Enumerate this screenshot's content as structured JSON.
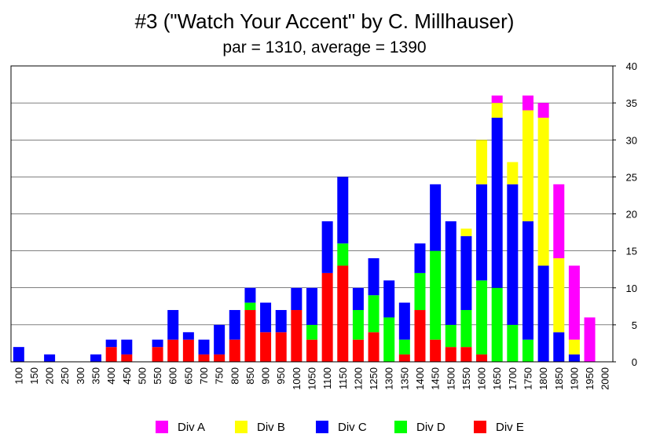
{
  "chart_data": {
    "type": "bar",
    "stacked": true,
    "title": "#3 (\"Watch Your Accent\" by C. Millhauser)",
    "subtitle": "par = 1310, average = 1390",
    "categories": [
      "100",
      "150",
      "200",
      "250",
      "300",
      "350",
      "400",
      "450",
      "500",
      "550",
      "600",
      "650",
      "700",
      "750",
      "800",
      "850",
      "900",
      "950",
      "1000",
      "1050",
      "1100",
      "1150",
      "1200",
      "1250",
      "1300",
      "1350",
      "1400",
      "1450",
      "1500",
      "1550",
      "1600",
      "1650",
      "1700",
      "1750",
      "1800",
      "1850",
      "1900",
      "1950",
      "2000"
    ],
    "series": [
      {
        "name": "Div E",
        "color": "#ff0000",
        "values": [
          0,
          0,
          0,
          0,
          0,
          0,
          2,
          1,
          0,
          2,
          3,
          3,
          1,
          1,
          3,
          7,
          4,
          4,
          7,
          3,
          12,
          13,
          3,
          4,
          0,
          1,
          7,
          3,
          2,
          2,
          1,
          0,
          0,
          0,
          0,
          0,
          0,
          0,
          0
        ]
      },
      {
        "name": "Div D",
        "color": "#00ff00",
        "values": [
          0,
          0,
          0,
          0,
          0,
          0,
          0,
          0,
          0,
          0,
          0,
          0,
          0,
          0,
          0,
          1,
          0,
          0,
          0,
          2,
          0,
          3,
          4,
          5,
          6,
          2,
          5,
          12,
          3,
          5,
          10,
          10,
          5,
          3,
          0,
          0,
          0,
          0,
          0
        ]
      },
      {
        "name": "Div C",
        "color": "#0000ff",
        "values": [
          2,
          0,
          1,
          0,
          0,
          1,
          1,
          2,
          0,
          1,
          4,
          1,
          2,
          4,
          4,
          2,
          4,
          3,
          3,
          5,
          7,
          9,
          3,
          5,
          5,
          5,
          4,
          9,
          14,
          10,
          13,
          23,
          19,
          16,
          13,
          4,
          1,
          0,
          0
        ]
      },
      {
        "name": "Div B",
        "color": "#ffff00",
        "values": [
          0,
          0,
          0,
          0,
          0,
          0,
          0,
          0,
          0,
          0,
          0,
          0,
          0,
          0,
          0,
          0,
          0,
          0,
          0,
          0,
          0,
          0,
          0,
          0,
          0,
          0,
          0,
          0,
          0,
          1,
          6,
          2,
          3,
          15,
          20,
          10,
          2,
          0,
          0
        ]
      },
      {
        "name": "Div A",
        "color": "#ff00ff",
        "values": [
          0,
          0,
          0,
          0,
          0,
          0,
          0,
          0,
          0,
          0,
          0,
          0,
          0,
          0,
          0,
          0,
          0,
          0,
          0,
          0,
          0,
          0,
          0,
          0,
          0,
          0,
          0,
          0,
          0,
          0,
          0,
          1,
          0,
          2,
          2,
          10,
          10,
          6,
          0
        ]
      }
    ],
    "ylim": [
      0,
      40
    ],
    "yticks": [
      0,
      5,
      10,
      15,
      20,
      25,
      30,
      35,
      40
    ],
    "y_axis_side": "right",
    "grid": true,
    "legend_order": [
      "Div A",
      "Div B",
      "Div C",
      "Div D",
      "Div E"
    ],
    "legend_position": "bottom"
  }
}
